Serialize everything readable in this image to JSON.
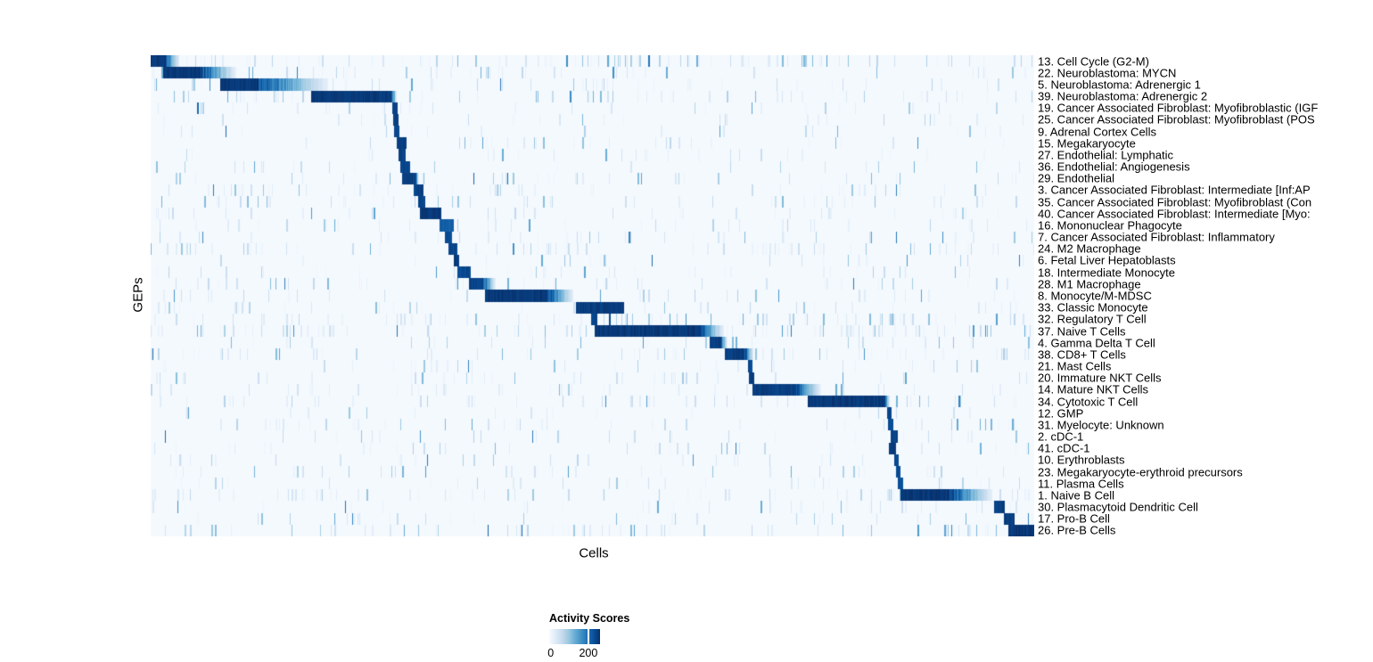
{
  "page_background": "#ffffff",
  "chart_data": {
    "type": "heatmap",
    "title": "",
    "xlabel": "Cells",
    "ylabel": "GEPs",
    "n_rows": 41,
    "grid": false,
    "value_domain": [
      0,
      235
    ],
    "colormap": {
      "name": "Blues",
      "stops": [
        "#f7fbff",
        "#deebf7",
        "#c6dbef",
        "#9ecae1",
        "#6baed6",
        "#4292c6",
        "#2171b5",
        "#08519c",
        "#08306b"
      ]
    },
    "legend": {
      "title": "Activity Scores",
      "position": "bottom",
      "ticks": [
        {
          "label": "0",
          "position": 0.03,
          "line": false
        },
        {
          "label": "200",
          "position": 0.77,
          "line": true
        }
      ]
    },
    "rows": [
      {
        "label": "13. Cell Cycle (G2-M)",
        "block": {
          "start": 0.0,
          "end": 0.016,
          "fade_end": 0.032,
          "value": 235
        },
        "noise": 0.3,
        "noise_regions": [
          [
            0.45,
            0.62,
            1.6
          ],
          [
            0.7,
            0.78,
            1.5
          ]
        ]
      },
      {
        "label": "22. Neuroblastoma: MYCN",
        "block": {
          "start": 0.015,
          "end": 0.056,
          "fade_end": 0.096,
          "value": 235
        },
        "noise": 0.16,
        "noise_regions": [
          [
            0.0,
            0.28,
            1.8
          ],
          [
            0.44,
            0.56,
            1.3
          ]
        ]
      },
      {
        "label": "5. Neuroblastoma: Adrenergic 1",
        "block": {
          "start": 0.079,
          "end": 0.12,
          "fade_end": 0.2,
          "value": 235
        },
        "noise": 0.16,
        "noise_regions": [
          [
            0.0,
            0.08,
            1.8
          ],
          [
            0.44,
            0.56,
            1.3
          ]
        ]
      },
      {
        "label": "39. Neuroblastoma: Adrenergic 2",
        "block": {
          "start": 0.182,
          "end": 0.272,
          "fade_end": 0.278,
          "value": 235
        },
        "noise": 0.2,
        "noise_regions": [
          [
            0.0,
            0.18,
            2.0
          ],
          [
            0.44,
            0.56,
            1.2
          ]
        ]
      },
      {
        "label": "19. Cancer Associated Fibroblast: Myofibroblastic (IGF",
        "block": {
          "start": 0.274,
          "end": 0.279,
          "value": 225
        },
        "noise": 0.08,
        "noise_regions": []
      },
      {
        "label": "25. Cancer Associated Fibroblast: Myofibroblast (POS",
        "block": {
          "start": 0.275,
          "end": 0.28,
          "value": 230
        },
        "noise": 0.08,
        "noise_regions": []
      },
      {
        "label": "9. Adrenal Cortex Cells",
        "block": {
          "start": 0.276,
          "end": 0.281,
          "value": 222
        },
        "noise": 0.06,
        "noise_regions": []
      },
      {
        "label": "15. Megakaryocyte",
        "block": {
          "start": 0.279,
          "end": 0.289,
          "value": 230
        },
        "noise": 0.1,
        "noise_regions": [
          [
            0.3,
            0.42,
            1.5
          ]
        ]
      },
      {
        "label": "27. Endothelial: Lymphatic",
        "block": {
          "start": 0.281,
          "end": 0.288,
          "value": 226
        },
        "noise": 0.08,
        "noise_regions": []
      },
      {
        "label": "36. Endothelial: Angiogenesis",
        "block": {
          "start": 0.283,
          "end": 0.293,
          "value": 226
        },
        "noise": 0.1,
        "noise_regions": []
      },
      {
        "label": "29. Endothelial",
        "block": {
          "start": 0.285,
          "end": 0.299,
          "fade_end": 0.303,
          "value": 230
        },
        "noise": 0.13,
        "noise_regions": [
          [
            0.28,
            0.46,
            1.4
          ],
          [
            0.56,
            0.76,
            1.2
          ]
        ]
      },
      {
        "label": "3. Cancer Associated Fibroblast: Intermediate [Inf:AP",
        "block": {
          "start": 0.298,
          "end": 0.308,
          "value": 226
        },
        "noise": 0.11,
        "noise_regions": [
          [
            0.0,
            0.28,
            1.5
          ]
        ]
      },
      {
        "label": "35. Cancer Associated Fibroblast: Myofibroblast (Con",
        "block": {
          "start": 0.303,
          "end": 0.31,
          "value": 226
        },
        "noise": 0.11,
        "noise_regions": [
          [
            0.0,
            0.28,
            1.5
          ],
          [
            0.56,
            0.68,
            1.3
          ]
        ]
      },
      {
        "label": "40. Cancer Associated Fibroblast: Intermediate [Myo:",
        "block": {
          "start": 0.305,
          "end": 0.328,
          "value": 235
        },
        "noise": 0.13,
        "noise_regions": [
          [
            0.0,
            0.3,
            1.5
          ]
        ]
      },
      {
        "label": "16. Mononuclear Phagocyte",
        "block": {
          "start": 0.327,
          "end": 0.343,
          "value": 200
        },
        "noise": 0.11,
        "noise_regions": [
          [
            0.3,
            0.46,
            1.5
          ]
        ]
      },
      {
        "label": "7. Cancer Associated Fibroblast: Inflammatory",
        "block": {
          "start": 0.333,
          "end": 0.341,
          "value": 216
        },
        "noise": 0.1,
        "noise_regions": []
      },
      {
        "label": "24. M2 Macrophage",
        "block": {
          "start": 0.338,
          "end": 0.347,
          "value": 222
        },
        "noise": 0.2,
        "noise_regions": [
          [
            0.0,
            0.35,
            1.4
          ],
          [
            0.35,
            0.5,
            1.7
          ]
        ]
      },
      {
        "label": "6. Fetal Liver Hepatoblasts",
        "block": {
          "start": 0.344,
          "end": 0.349,
          "value": 235
        },
        "noise": 0.09,
        "noise_regions": []
      },
      {
        "label": "18. Intermediate Monocyte",
        "block": {
          "start": 0.348,
          "end": 0.362,
          "value": 222
        },
        "noise": 0.13,
        "noise_regions": [
          [
            0.3,
            0.52,
            1.5
          ]
        ]
      },
      {
        "label": "28. M1 Macrophage",
        "block": {
          "start": 0.361,
          "end": 0.376,
          "fade_end": 0.39,
          "value": 226
        },
        "noise": 0.13,
        "noise_regions": [
          [
            0.3,
            0.52,
            1.5
          ]
        ]
      },
      {
        "label": "8. Monocyte/M-MDSC",
        "block": {
          "start": 0.379,
          "end": 0.449,
          "fade_end": 0.478,
          "value": 235
        },
        "noise": 0.15,
        "noise_regions": [
          [
            0.3,
            0.4,
            1.4
          ],
          [
            0.48,
            0.58,
            1.4
          ]
        ]
      },
      {
        "label": "33. Classic Monocyte",
        "block": {
          "start": 0.482,
          "end": 0.535,
          "value": 232
        },
        "noise": 0.15,
        "noise_regions": [
          [
            0.35,
            0.48,
            1.4
          ],
          [
            0.55,
            0.72,
            1.3
          ]
        ]
      },
      {
        "label": "32. Regulatory T Cell",
        "block": {
          "start": 0.499,
          "end": 0.505,
          "value": 225
        },
        "noise": 0.18,
        "noise_regions": [
          [
            0.505,
            0.545,
            3.0
          ],
          [
            0.55,
            0.86,
            1.6
          ]
        ]
      },
      {
        "label": "37. Naive T Cells",
        "block": {
          "start": 0.503,
          "end": 0.622,
          "fade_end": 0.648,
          "value": 235
        },
        "noise": 0.26,
        "noise_regions": [
          [
            0.0,
            0.5,
            1.2
          ],
          [
            0.65,
            1.0,
            1.5
          ]
        ]
      },
      {
        "label": "4. Gamma Delta T Cell",
        "block": {
          "start": 0.633,
          "end": 0.644,
          "fade_end": 0.652,
          "value": 230
        },
        "noise": 0.13,
        "noise_regions": [
          [
            0.54,
            0.86,
            1.4
          ]
        ]
      },
      {
        "label": "38. CD8+ T Cells",
        "block": {
          "start": 0.65,
          "end": 0.672,
          "fade_end": 0.682,
          "value": 230
        },
        "noise": 0.16,
        "noise_regions": [
          [
            0.54,
            0.86,
            1.5
          ]
        ]
      },
      {
        "label": "21. Mast Cells",
        "block": {
          "start": 0.677,
          "end": 0.681,
          "value": 222
        },
        "noise": 0.09,
        "noise_regions": []
      },
      {
        "label": "20. Immature NKT Cells",
        "block": {
          "start": 0.678,
          "end": 0.683,
          "value": 230
        },
        "noise": 0.13,
        "noise_regions": [
          [
            0.54,
            0.86,
            1.3
          ]
        ]
      },
      {
        "label": "14. Mature NKT Cells",
        "block": {
          "start": 0.682,
          "end": 0.73,
          "fade_end": 0.758,
          "value": 230
        },
        "noise": 0.16,
        "noise_regions": [
          [
            0.6,
            0.84,
            1.5
          ]
        ]
      },
      {
        "label": "34. Cytotoxic T Cell",
        "block": {
          "start": 0.744,
          "end": 0.83,
          "fade_end": 0.836,
          "value": 235
        },
        "noise": 0.16,
        "noise_regions": [
          [
            0.54,
            0.74,
            1.5
          ],
          [
            0.84,
            1.0,
            1.2
          ]
        ]
      },
      {
        "label": "12. GMP",
        "block": {
          "start": 0.834,
          "end": 0.838,
          "value": 222
        },
        "noise": 0.07,
        "noise_regions": []
      },
      {
        "label": "31. Myelocyte: Unknown",
        "block": {
          "start": 0.835,
          "end": 0.84,
          "value": 216
        },
        "noise": 0.11,
        "noise_regions": [
          [
            0.0,
            0.2,
            1.3
          ],
          [
            0.84,
            1.0,
            1.3
          ]
        ]
      },
      {
        "label": "2. cDC-1",
        "block": {
          "start": 0.838,
          "end": 0.845,
          "value": 226
        },
        "noise": 0.09,
        "noise_regions": []
      },
      {
        "label": "41. cDC-1",
        "block": {
          "start": 0.836,
          "end": 0.843,
          "value": 230
        },
        "noise": 0.11,
        "noise_regions": [
          [
            0.84,
            1.0,
            1.4
          ]
        ]
      },
      {
        "label": "10. Erythroblasts",
        "block": {
          "start": 0.842,
          "end": 0.846,
          "value": 222
        },
        "noise": 0.09,
        "noise_regions": [
          [
            0.0,
            0.2,
            1.3
          ]
        ]
      },
      {
        "label": "23. Megakaryocyte-erythroid precursors",
        "block": {
          "start": 0.844,
          "end": 0.848,
          "value": 216
        },
        "noise": 0.13,
        "noise_regions": [
          [
            0.0,
            0.3,
            1.2
          ],
          [
            0.3,
            0.6,
            1.2
          ]
        ]
      },
      {
        "label": "11. Plasma Cells",
        "block": {
          "start": 0.846,
          "end": 0.851,
          "value": 216
        },
        "noise": 0.11,
        "noise_regions": [
          [
            0.85,
            1.0,
            1.4
          ]
        ]
      },
      {
        "label": "1. Naive B Cell",
        "block": {
          "start": 0.849,
          "end": 0.904,
          "fade_end": 0.952,
          "value": 235
        },
        "noise": 0.18,
        "noise_regions": [
          [
            0.85,
            1.0,
            1.7
          ]
        ]
      },
      {
        "label": "30. Plasmacytoid Dendritic Cell",
        "block": {
          "start": 0.955,
          "end": 0.966,
          "value": 230
        },
        "noise": 0.11,
        "noise_regions": [
          [
            0.9,
            1.0,
            1.4
          ]
        ]
      },
      {
        "label": "17. Pro-B Cell",
        "block": {
          "start": 0.966,
          "end": 0.977,
          "value": 230
        },
        "noise": 0.13,
        "noise_regions": [
          [
            0.9,
            1.0,
            1.6
          ]
        ]
      },
      {
        "label": "26. Pre-B Cells",
        "block": {
          "start": 0.971,
          "end": 1.0,
          "value": 235
        },
        "noise": 0.2,
        "noise_regions": [
          [
            0.0,
            0.3,
            1.2
          ],
          [
            0.85,
            0.97,
            1.8
          ]
        ]
      }
    ]
  }
}
